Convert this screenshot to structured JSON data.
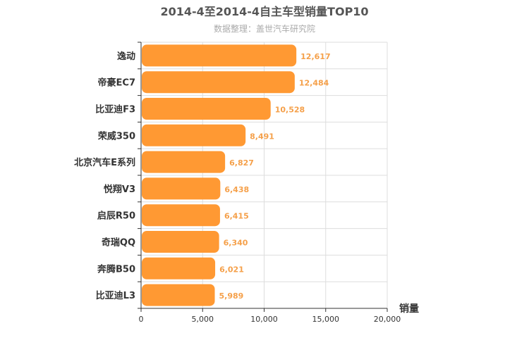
{
  "chart_data": {
    "type": "bar",
    "orientation": "horizontal",
    "title": "2014-4至2014-4自主车型销量TOP10",
    "subtitle": "数据整理：盖世汽车研究院",
    "xlabel": "销量",
    "xlim": [
      0,
      20000
    ],
    "xticks": [
      0,
      5000,
      10000,
      15000,
      20000
    ],
    "xtick_labels": [
      "0",
      "5,000",
      "10,000",
      "15,000",
      "20,000"
    ],
    "grid": true,
    "bar_color": "#ff9933",
    "label_color": "#f5a04a",
    "categories": [
      "逸动",
      "帝豪EC7",
      "比亚迪F3",
      "荣威350",
      "北京汽车E系列",
      "悦翔V3",
      "启辰R50",
      "奇瑞QQ",
      "奔腾B50",
      "比亚迪L3"
    ],
    "values": [
      12617,
      12484,
      10528,
      8491,
      6827,
      6438,
      6415,
      6340,
      6021,
      5989
    ],
    "value_labels": [
      "12,617",
      "12,484",
      "10,528",
      "8,491",
      "6,827",
      "6,438",
      "6,415",
      "6,340",
      "6,021",
      "5,989"
    ]
  }
}
